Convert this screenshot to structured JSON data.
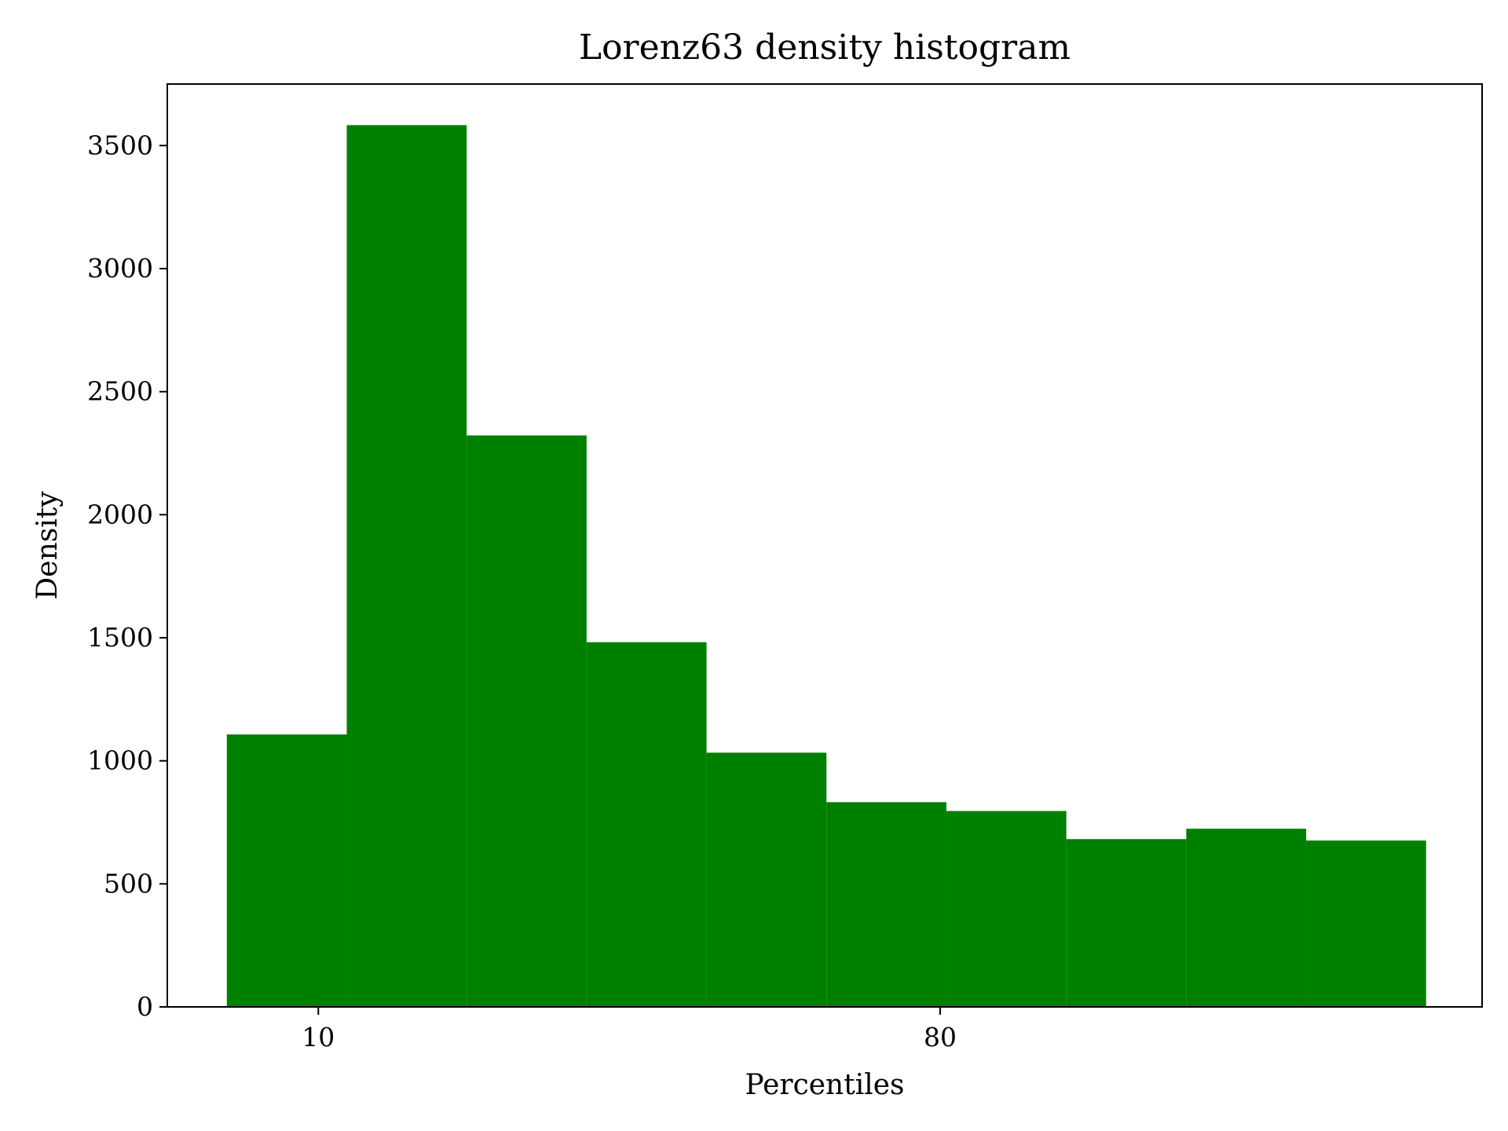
{
  "chart_data": {
    "type": "bar",
    "title": "Lorenz63 density histogram",
    "xlabel": "Percentiles",
    "ylabel": "Density",
    "bar_color": "#008000",
    "bin_edges": [
      -0.3,
      13.2,
      26.7,
      40.2,
      53.7,
      67.2,
      80.7,
      94.2,
      107.7,
      121.2,
      134.7
    ],
    "values": [
      1107,
      3583,
      2322,
      1482,
      1033,
      832,
      796,
      682,
      724,
      676
    ],
    "xlim": [
      -7,
      141
    ],
    "ylim": [
      0,
      3750
    ],
    "xticks": [
      10,
      80
    ],
    "xtick_labels": [
      "10",
      "80"
    ],
    "yticks": [
      0,
      500,
      1000,
      1500,
      2000,
      2500,
      3000,
      3500
    ],
    "ytick_labels": [
      "0",
      "500",
      "1000",
      "1500",
      "2000",
      "2500",
      "3000",
      "3500"
    ],
    "grid": false,
    "legend": "none"
  }
}
